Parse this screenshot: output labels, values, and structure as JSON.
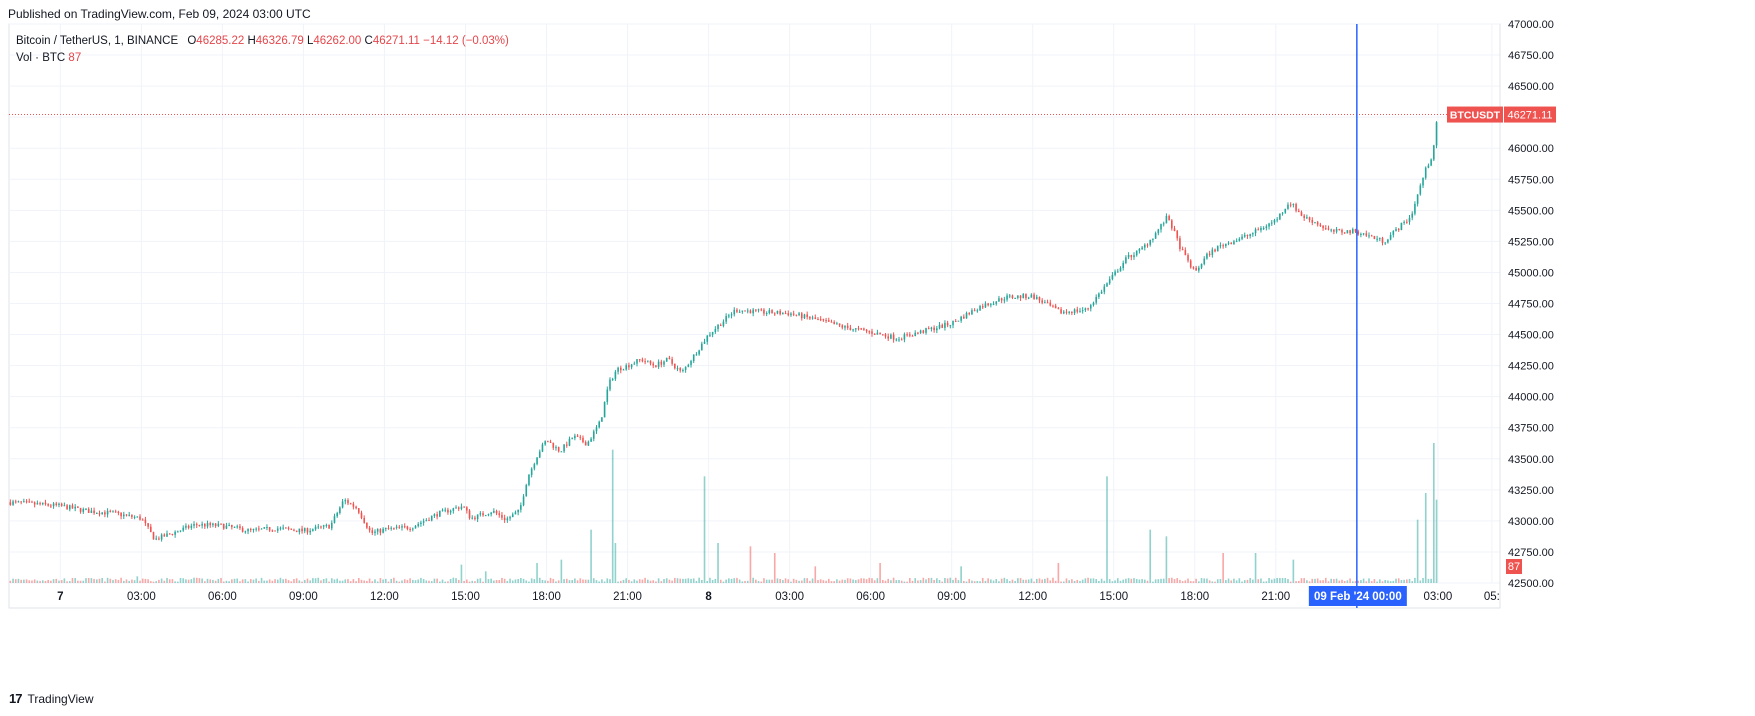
{
  "header": {
    "published": "Published on TradingView.com, Feb 09, 2024 03:00 UTC"
  },
  "legend": {
    "symbol": "Bitcoin / TetherUS, 1, BINANCE",
    "open_label": "O",
    "open": "46285.22",
    "high_label": "H",
    "high": "46326.79",
    "low_label": "L",
    "low": "46262.00",
    "close_label": "C",
    "close": "46271.11",
    "change": "−14.12 (−0.03%)",
    "vol_label": "Vol · BTC",
    "vol_value": "87"
  },
  "footer": {
    "logo_mark": "17",
    "brand": "TradingView"
  },
  "colors": {
    "up": "#26a69a",
    "down": "#ef5350",
    "crosshair": "#2962ff",
    "grid": "#f0f3fa",
    "text": "#131722"
  },
  "chart_data": {
    "type": "candlestick",
    "symbol": "BTCUSDT",
    "interval": "1 minute",
    "ylim": [
      42500,
      47000
    ],
    "y_ticks": [
      "47000.00",
      "46750.00",
      "46500.00",
      "46250.00",
      "46000.00",
      "45750.00",
      "45500.00",
      "45250.00",
      "45000.00",
      "44750.00",
      "44500.00",
      "44250.00",
      "44000.00",
      "43750.00",
      "43500.00",
      "43250.00",
      "43000.00",
      "42750.00",
      "42500.00"
    ],
    "x_ticks": [
      {
        "label": "7",
        "hours": 0,
        "bold": true
      },
      {
        "label": "03:00",
        "hours": 3
      },
      {
        "label": "06:00",
        "hours": 6
      },
      {
        "label": "09:00",
        "hours": 9
      },
      {
        "label": "12:00",
        "hours": 12
      },
      {
        "label": "15:00",
        "hours": 15
      },
      {
        "label": "18:00",
        "hours": 18
      },
      {
        "label": "21:00",
        "hours": 21
      },
      {
        "label": "8",
        "hours": 24,
        "bold": true
      },
      {
        "label": "03:00",
        "hours": 27
      },
      {
        "label": "06:00",
        "hours": 30
      },
      {
        "label": "09:00",
        "hours": 33
      },
      {
        "label": "12:00",
        "hours": 36
      },
      {
        "label": "15:00",
        "hours": 39
      },
      {
        "label": "18:00",
        "hours": 42
      },
      {
        "label": "21:00",
        "hours": 45
      },
      {
        "label": "03:00",
        "hours": 51
      },
      {
        "label": "05:",
        "hours": 53
      }
    ],
    "x_range_hours": [
      -1.9,
      53.3
    ],
    "price_path_hours": [
      -1.9,
      0,
      1,
      2,
      3,
      3.5,
      4,
      5,
      6,
      7,
      8,
      9,
      10,
      10.5,
      11,
      11.5,
      12,
      13,
      14,
      14.9,
      15.2,
      16,
      16.5,
      17,
      17.3,
      17.7,
      18,
      18.5,
      19,
      19.5,
      20,
      20.3,
      20.6,
      21,
      21.5,
      22,
      22.5,
      23,
      24,
      25,
      26,
      27,
      28,
      29,
      30,
      31,
      32,
      33,
      34,
      35,
      36,
      37,
      38,
      39,
      39.5,
      40,
      40.5,
      41,
      41.5,
      42,
      42.5,
      43,
      44,
      45,
      45.5,
      46,
      46.5,
      47,
      48,
      49,
      50,
      50.5,
      50.8,
      51
    ],
    "price_path_values": [
      43150,
      43120,
      43080,
      43060,
      43020,
      42850,
      42890,
      42970,
      42960,
      42920,
      42940,
      42920,
      42960,
      43170,
      43100,
      42900,
      42930,
      42950,
      43060,
      43120,
      43020,
      43080,
      43010,
      43080,
      43350,
      43550,
      43650,
      43560,
      43680,
      43620,
      43800,
      44100,
      44220,
      44250,
      44300,
      44250,
      44300,
      44190,
      44500,
      44700,
      44680,
      44670,
      44620,
      44560,
      44520,
      44470,
      44530,
      44590,
      44720,
      44800,
      44810,
      44680,
      44700,
      44980,
      45120,
      45180,
      45300,
      45450,
      45180,
      45000,
      45150,
      45220,
      45300,
      45420,
      45570,
      45450,
      45400,
      45330,
      45330,
      45250,
      45450,
      45800,
      45950,
      46271
    ],
    "volume": {
      "baseline": 10,
      "spikes": [
        {
          "hours": 2.9,
          "value": 20
        },
        {
          "hours": 11,
          "value": 15
        },
        {
          "hours": 14.8,
          "value": 55
        },
        {
          "hours": 15.7,
          "value": 35
        },
        {
          "hours": 17.6,
          "value": 60
        },
        {
          "hours": 18.5,
          "value": 70
        },
        {
          "hours": 19.7,
          "value": 160
        },
        {
          "hours": 20.5,
          "value": 400
        },
        {
          "hours": 20.6,
          "value": 120
        },
        {
          "hours": 23.9,
          "value": 320
        },
        {
          "hours": 24.4,
          "value": 120
        },
        {
          "hours": 25.6,
          "value": 110
        },
        {
          "hours": 26.5,
          "value": 90
        },
        {
          "hours": 28,
          "value": 50
        },
        {
          "hours": 30.4,
          "value": 60
        },
        {
          "hours": 33.4,
          "value": 50
        },
        {
          "hours": 37,
          "value": 60
        },
        {
          "hours": 38.8,
          "value": 320
        },
        {
          "hours": 40.4,
          "value": 160
        },
        {
          "hours": 41,
          "value": 140
        },
        {
          "hours": 43.1,
          "value": 90
        },
        {
          "hours": 44.3,
          "value": 90
        },
        {
          "hours": 45.7,
          "value": 70
        },
        {
          "hours": 50.3,
          "value": 190
        },
        {
          "hours": 50.6,
          "value": 270
        },
        {
          "hours": 50.85,
          "value": 420
        },
        {
          "hours": 51,
          "value": 250
        }
      ]
    },
    "last_price_label": "BTCUSDT",
    "last_price": "46271.11",
    "volume_label": "87",
    "crosshair_label_date": "09 Feb '24",
    "crosshair_label_time": "00:00",
    "crosshair_hours": 48
  }
}
